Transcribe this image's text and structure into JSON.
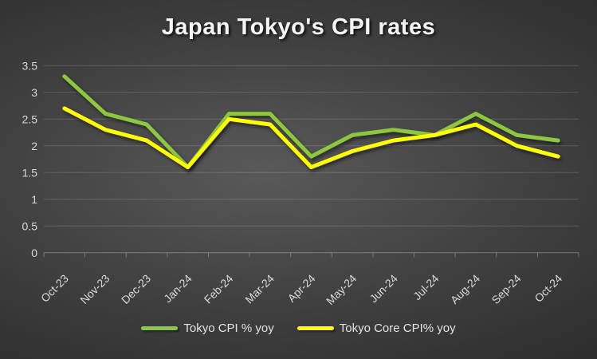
{
  "theme": {
    "grid-color": "rgba(255,255,255,0.16)",
    "axis-color": "rgba(255,255,255,0.30)",
    "tick-label-color": "#d9d9d9",
    "title-color": "#f5f5f5",
    "legend-text-color": "#e3e3e3",
    "bg-center": "#595959",
    "bg-edge": "#232323"
  },
  "chart_data": {
    "type": "line",
    "title": "Japan Tokyo's CPI rates",
    "categories": [
      "Oct-23",
      "Nov-23",
      "Dec-23",
      "Jan-24",
      "Feb-24",
      "Mar-24",
      "Apr-24",
      "May-24",
      "Jun-24",
      "Jul-24",
      "Aug-24",
      "Sep-24",
      "Oct-24"
    ],
    "series": [
      {
        "name": "Tokyo CPI % yoy",
        "color": "#8DC63F",
        "values": [
          3.3,
          2.6,
          2.4,
          1.6,
          2.6,
          2.6,
          1.8,
          2.2,
          2.3,
          2.2,
          2.6,
          2.2,
          2.1
        ]
      },
      {
        "name": "Tokyo Core CPI% yoy",
        "color": "#FFFF00",
        "values": [
          2.7,
          2.3,
          2.1,
          1.6,
          2.5,
          2.4,
          1.6,
          1.9,
          2.1,
          2.2,
          2.4,
          2.0,
          1.8
        ]
      }
    ],
    "xlabel": "",
    "ylabel": "",
    "ylim": [
      0,
      3.5
    ],
    "ytick_step": 0.5,
    "yticks": [
      "3.5",
      "3",
      "2.5",
      "2",
      "1.5",
      "1",
      "0.5",
      "0"
    ],
    "grid": true,
    "x_label_rotation": -45,
    "legend_position": "bottom"
  }
}
